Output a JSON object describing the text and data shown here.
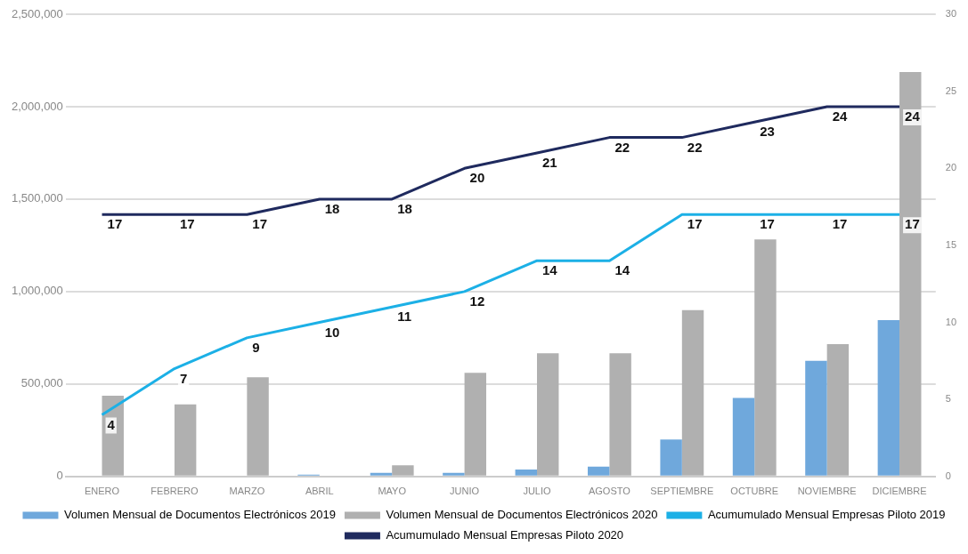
{
  "chart_data": {
    "type": "bar",
    "categories": [
      "ENERO",
      "FEBRERO",
      "MARZO",
      "ABRIL",
      "MAYO",
      "JUNIO",
      "JULIO",
      "AGOSTO",
      "SEPTIEMBRE",
      "OCTUBRE",
      "NOVIEMBRE",
      "DICIEMBRE"
    ],
    "series": [
      {
        "name": "Volumen Mensual de Documentos Electrónicos 2019",
        "color": "#6fa8dc",
        "values": [
          null,
          null,
          null,
          10000,
          20000,
          20000,
          37000,
          53000,
          200000,
          425000,
          626000,
          845000
        ]
      },
      {
        "name": "Volumen Mensual de Documentos Electrónicos 2020",
        "color": "#b0b0b0",
        "values": [
          437000,
          390000,
          537000,
          null,
          60000,
          560000,
          666000,
          666000,
          900000,
          1282000,
          716000,
          2187000
        ]
      },
      {
        "name": "Acumumulado Mensual Empresas Piloto 2019",
        "type": "line",
        "axis": "y2",
        "color": "#1cb0e6",
        "values": [
          4,
          7,
          9,
          10,
          11,
          12,
          14,
          14,
          17,
          17,
          17,
          17
        ],
        "value_labels": [
          "4",
          "7",
          "9",
          "10",
          "11",
          "12",
          "14",
          "14",
          "17",
          "17",
          "17",
          "17"
        ]
      },
      {
        "name": "Acumumulado Mensual Empresas Piloto 2020",
        "type": "line",
        "axis": "y2",
        "color": "#1f2a5e",
        "values": [
          17,
          17,
          17,
          18,
          18,
          20,
          21,
          22,
          22,
          23,
          24,
          24
        ],
        "value_labels": [
          "17",
          "17",
          "17",
          "18",
          "18",
          "20",
          "21",
          "22",
          "22",
          "23",
          "24",
          "24"
        ]
      }
    ],
    "ylim": [
      0,
      2500000
    ],
    "yticks": [
      {
        "value": 0,
        "label": "0"
      },
      {
        "value": 500000,
        "label": "500,000"
      },
      {
        "value": 1000000,
        "label": "1,000,000"
      },
      {
        "value": 1500000,
        "label": "1,500,000"
      },
      {
        "value": 2000000,
        "label": "2,000,000"
      },
      {
        "value": 2500000,
        "label": "2,500,000"
      }
    ],
    "y2lim": [
      0,
      30
    ],
    "y2ticks": [
      0,
      5,
      10,
      15,
      20,
      25,
      30
    ],
    "grid": "y",
    "legend": "bottom",
    "marker": "none",
    "line_style": "solid"
  }
}
